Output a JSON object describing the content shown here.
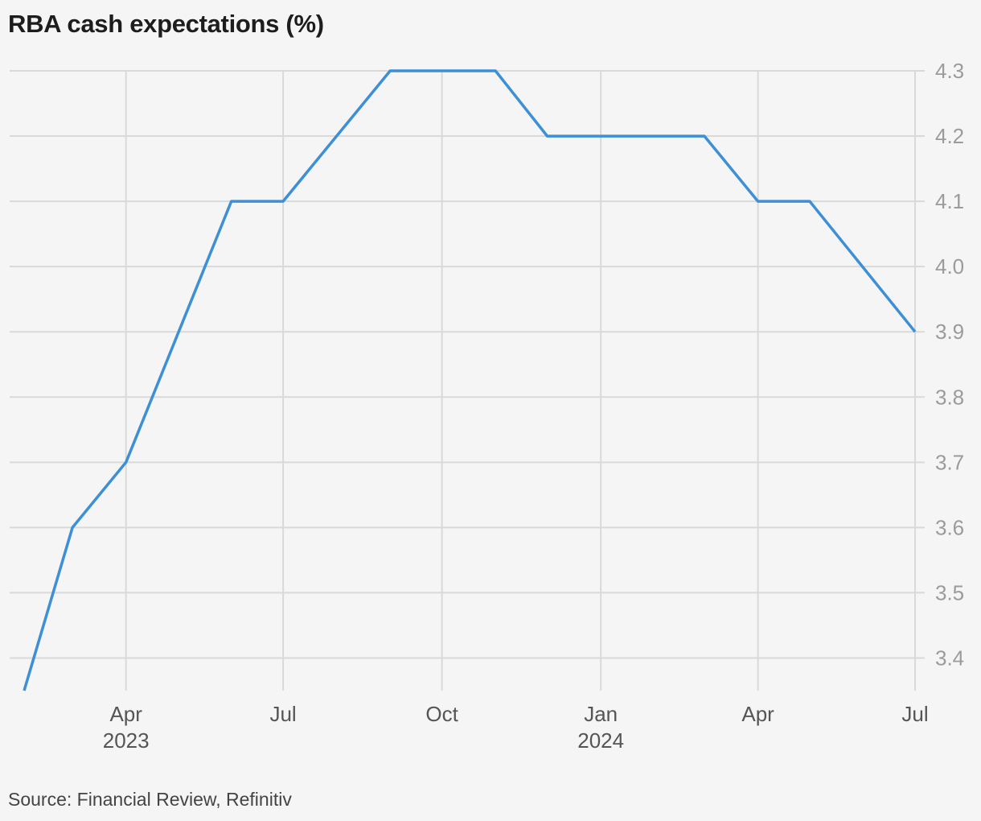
{
  "chart_data": {
    "type": "line",
    "title": "RBA cash expectations (%)",
    "source": "Source: Financial Review, Refinitiv",
    "x_ticks": [
      {
        "date": "2023-04-01",
        "label": "Apr",
        "year": "2023"
      },
      {
        "date": "2023-07-01",
        "label": "Jul",
        "year": ""
      },
      {
        "date": "2023-10-01",
        "label": "Oct",
        "year": ""
      },
      {
        "date": "2024-01-01",
        "label": "Jan",
        "year": "2024"
      },
      {
        "date": "2024-04-01",
        "label": "Apr",
        "year": ""
      },
      {
        "date": "2024-07-01",
        "label": "Jul",
        "year": ""
      }
    ],
    "y_ticks": [
      "3.4",
      "3.5",
      "3.6",
      "3.7",
      "3.8",
      "3.9",
      "4.0",
      "4.1",
      "4.2",
      "4.3"
    ],
    "ylim": [
      3.35,
      4.3
    ],
    "xlim": [
      "2023-02-01",
      "2024-07-01"
    ],
    "grid": true,
    "y_axis_position": "right",
    "series": [
      {
        "color": "#3d8fd6",
        "points": [
          {
            "x": "2023-02-01",
            "y": 3.35
          },
          {
            "x": "2023-03-01",
            "y": 3.6
          },
          {
            "x": "2023-04-01",
            "y": 3.7
          },
          {
            "x": "2023-06-01",
            "y": 4.1
          },
          {
            "x": "2023-07-01",
            "y": 4.1
          },
          {
            "x": "2023-09-01",
            "y": 4.3
          },
          {
            "x": "2023-11-01",
            "y": 4.3
          },
          {
            "x": "2023-12-01",
            "y": 4.2
          },
          {
            "x": "2024-03-01",
            "y": 4.2
          },
          {
            "x": "2024-04-01",
            "y": 4.1
          },
          {
            "x": "2024-05-01",
            "y": 4.1
          },
          {
            "x": "2024-07-01",
            "y": 3.9
          }
        ]
      }
    ]
  }
}
